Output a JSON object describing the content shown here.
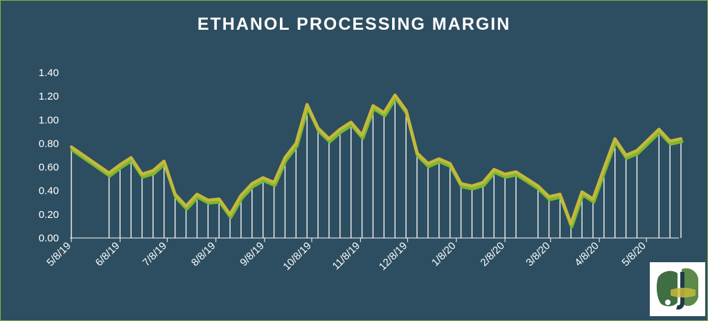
{
  "chart_data": {
    "type": "line",
    "title": "ETHANOL PROCESSING MARGIN",
    "xlabel": "",
    "ylabel": "",
    "ylim": [
      0,
      1.4
    ],
    "yticks": [
      "0.00",
      "0.20",
      "0.40",
      "0.60",
      "0.80",
      "1.00",
      "1.20",
      "1.40"
    ],
    "x_tick_labels": [
      "5/8/19",
      "6/8/19",
      "7/8/19",
      "8/8/19",
      "9/8/19",
      "10/8/19",
      "11/8/19",
      "12/8/19",
      "1/8/20",
      "2/8/20",
      "3/8/20",
      "4/8/20",
      "5/8/20"
    ],
    "x_start": "2019-05-08",
    "grid": false,
    "legend": "none",
    "colors": {
      "line": "#c6b83c",
      "shadow": "#7bb82e",
      "drop_lines": "#ffffff",
      "background": "#2d4e60",
      "border": "#7db83a"
    },
    "series": [
      {
        "dates": [
          "2019-05-08",
          "2019-06-01",
          "2019-06-08",
          "2019-06-15",
          "2019-06-22",
          "2019-06-29",
          "2019-07-06",
          "2019-07-13",
          "2019-07-20",
          "2019-07-27",
          "2019-08-03",
          "2019-08-10",
          "2019-08-17",
          "2019-08-24",
          "2019-08-31",
          "2019-09-07",
          "2019-09-14",
          "2019-09-21",
          "2019-09-28",
          "2019-10-05",
          "2019-10-12",
          "2019-10-19",
          "2019-10-26",
          "2019-11-02",
          "2019-11-09",
          "2019-11-16",
          "2019-11-23",
          "2019-11-30",
          "2019-12-07",
          "2019-12-14",
          "2019-12-21",
          "2019-12-28",
          "2020-01-04",
          "2020-01-11",
          "2020-01-18",
          "2020-01-25",
          "2020-02-01",
          "2020-02-08",
          "2020-02-15",
          "2020-02-29",
          "2020-03-07",
          "2020-03-14",
          "2020-03-21",
          "2020-03-28",
          "2020-04-04",
          "2020-04-11",
          "2020-04-18",
          "2020-04-25",
          "2020-05-02",
          "2020-05-16",
          "2020-05-23",
          "2020-05-30"
        ],
        "values": [
          0.77,
          0.55,
          0.62,
          0.68,
          0.54,
          0.57,
          0.65,
          0.37,
          0.27,
          0.37,
          0.32,
          0.33,
          0.2,
          0.36,
          0.46,
          0.51,
          0.47,
          0.68,
          0.8,
          1.13,
          0.93,
          0.84,
          0.92,
          0.98,
          0.87,
          1.12,
          1.06,
          1.21,
          1.08,
          0.72,
          0.63,
          0.67,
          0.63,
          0.46,
          0.44,
          0.47,
          0.58,
          0.54,
          0.56,
          0.44,
          0.35,
          0.37,
          0.12,
          0.39,
          0.33,
          0.59,
          0.84,
          0.7,
          0.74,
          0.92,
          0.82,
          0.84
        ]
      }
    ]
  }
}
